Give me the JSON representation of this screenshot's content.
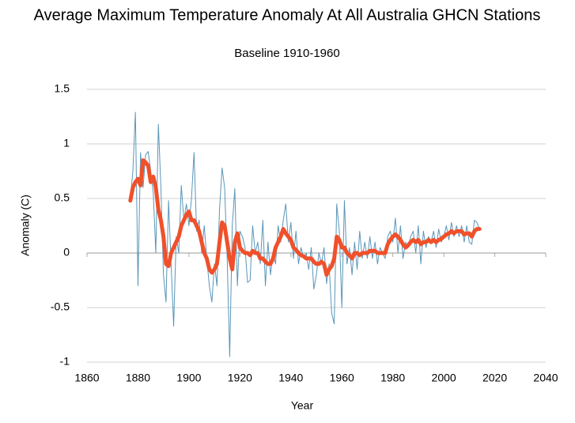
{
  "chart_data": {
    "type": "line",
    "title": "Average Maximum Temperature Anomaly At All Australia GHCN Stations",
    "subtitle": "Baseline 1910-1960",
    "x_label": "Year",
    "y_label": "Anomaly (C)",
    "x": [
      1877,
      1878,
      1879,
      1880,
      1881,
      1882,
      1883,
      1884,
      1885,
      1886,
      1887,
      1888,
      1889,
      1890,
      1891,
      1892,
      1893,
      1894,
      1895,
      1896,
      1897,
      1898,
      1899,
      1900,
      1901,
      1902,
      1903,
      1904,
      1905,
      1906,
      1907,
      1908,
      1909,
      1910,
      1911,
      1912,
      1913,
      1914,
      1915,
      1916,
      1917,
      1918,
      1919,
      1920,
      1921,
      1922,
      1923,
      1924,
      1925,
      1926,
      1927,
      1928,
      1929,
      1930,
      1931,
      1932,
      1933,
      1934,
      1935,
      1936,
      1937,
      1938,
      1939,
      1940,
      1941,
      1942,
      1943,
      1944,
      1945,
      1946,
      1947,
      1948,
      1949,
      1950,
      1951,
      1952,
      1953,
      1954,
      1955,
      1956,
      1957,
      1958,
      1959,
      1960,
      1961,
      1962,
      1963,
      1964,
      1965,
      1966,
      1967,
      1968,
      1969,
      1970,
      1971,
      1972,
      1973,
      1974,
      1975,
      1976,
      1977,
      1978,
      1979,
      1980,
      1981,
      1982,
      1983,
      1984,
      1985,
      1986,
      1987,
      1988,
      1989,
      1990,
      1991,
      1992,
      1993,
      1994,
      1995,
      1996,
      1997,
      1998,
      1999,
      2000,
      2001,
      2002,
      2003,
      2004,
      2005,
      2006,
      2007,
      2008,
      2009,
      2010,
      2011,
      2012,
      2013,
      2014
    ],
    "series": [
      {
        "color": "#5b96b8",
        "width": 1,
        "values": [
          0.5,
          0.75,
          1.29,
          -0.3,
          0.92,
          0.6,
          0.9,
          0.93,
          0.75,
          0.55,
          0.0,
          1.18,
          0.6,
          -0.2,
          -0.45,
          0.48,
          -0.1,
          -0.67,
          0.15,
          0.0,
          0.62,
          0.3,
          0.45,
          0.25,
          0.5,
          0.92,
          0.2,
          0.3,
          0.0,
          0.25,
          -0.05,
          -0.3,
          -0.45,
          -0.1,
          -0.3,
          0.4,
          0.78,
          0.6,
          -0.05,
          -0.95,
          0.25,
          0.59,
          -0.3,
          0.2,
          0.15,
          0.05,
          -0.27,
          -0.25,
          0.25,
          0.0,
          0.1,
          -0.1,
          0.3,
          -0.3,
          0.1,
          -0.2,
          0.0,
          -0.1,
          0.25,
          0.1,
          0.3,
          0.45,
          0.1,
          0.28,
          -0.05,
          0.2,
          -0.1,
          0.05,
          -0.05,
          0.0,
          -0.15,
          0.05,
          -0.33,
          -0.2,
          0.0,
          -0.1,
          0.05,
          -0.28,
          -0.1,
          -0.55,
          -0.65,
          0.45,
          0.2,
          -0.5,
          0.48,
          -0.1,
          0.05,
          -0.2,
          0.1,
          -0.15,
          0.2,
          -0.05,
          0.1,
          -0.05,
          0.15,
          -0.05,
          0.1,
          -0.1,
          0.05,
          0.0,
          -0.05,
          0.15,
          0.2,
          0.1,
          0.32,
          0.0,
          0.25,
          -0.05,
          0.1,
          0.05,
          0.15,
          0.2,
          0.0,
          0.25,
          -0.1,
          0.2,
          0.05,
          0.15,
          0.1,
          0.2,
          0.05,
          0.22,
          0.1,
          0.15,
          0.25,
          0.12,
          0.28,
          0.15,
          0.25,
          0.15,
          0.25,
          0.1,
          0.25,
          0.1,
          0.08,
          0.3,
          0.28,
          0.22
        ]
      },
      {
        "color": "#f0502a",
        "width": 5,
        "values": [
          0.48,
          0.6,
          0.65,
          0.68,
          0.62,
          0.85,
          0.83,
          0.8,
          0.65,
          0.7,
          0.6,
          0.4,
          0.3,
          0.15,
          -0.1,
          -0.12,
          0.0,
          0.05,
          0.1,
          0.15,
          0.25,
          0.3,
          0.35,
          0.38,
          0.3,
          0.3,
          0.25,
          0.2,
          0.1,
          0.0,
          -0.05,
          -0.15,
          -0.18,
          -0.15,
          -0.1,
          0.1,
          0.28,
          0.25,
          0.1,
          -0.05,
          -0.15,
          0.1,
          0.18,
          0.05,
          0.02,
          0.0,
          0.0,
          -0.02,
          0.02,
          0.0,
          0.0,
          -0.05,
          -0.05,
          -0.08,
          -0.1,
          -0.1,
          -0.05,
          0.05,
          0.1,
          0.15,
          0.22,
          0.18,
          0.15,
          0.12,
          0.05,
          0.03,
          0.0,
          -0.02,
          -0.03,
          -0.05,
          -0.05,
          -0.05,
          -0.08,
          -0.1,
          -0.1,
          -0.08,
          -0.1,
          -0.2,
          -0.15,
          -0.12,
          -0.05,
          0.15,
          0.12,
          0.05,
          0.05,
          0.0,
          -0.02,
          -0.05,
          0.0,
          0.0,
          -0.02,
          0.0,
          0.0,
          0.0,
          0.02,
          0.02,
          0.02,
          0.0,
          0.0,
          0.0,
          0.0,
          0.08,
          0.12,
          0.15,
          0.17,
          0.15,
          0.12,
          0.08,
          0.05,
          0.07,
          0.1,
          0.12,
          0.1,
          0.12,
          0.08,
          0.1,
          0.1,
          0.12,
          0.1,
          0.12,
          0.1,
          0.12,
          0.13,
          0.15,
          0.17,
          0.18,
          0.2,
          0.18,
          0.2,
          0.2,
          0.2,
          0.17,
          0.18,
          0.18,
          0.15,
          0.2,
          0.22,
          0.22
        ]
      }
    ],
    "xlim": [
      1860,
      2040
    ],
    "xticks": [
      1860,
      1880,
      1900,
      1920,
      1940,
      1960,
      1980,
      2000,
      2020,
      2040
    ],
    "ylim": [
      -1,
      1.5
    ],
    "yticks": [
      -1,
      -0.5,
      0,
      0.5,
      1,
      1.5
    ],
    "grid": true
  }
}
